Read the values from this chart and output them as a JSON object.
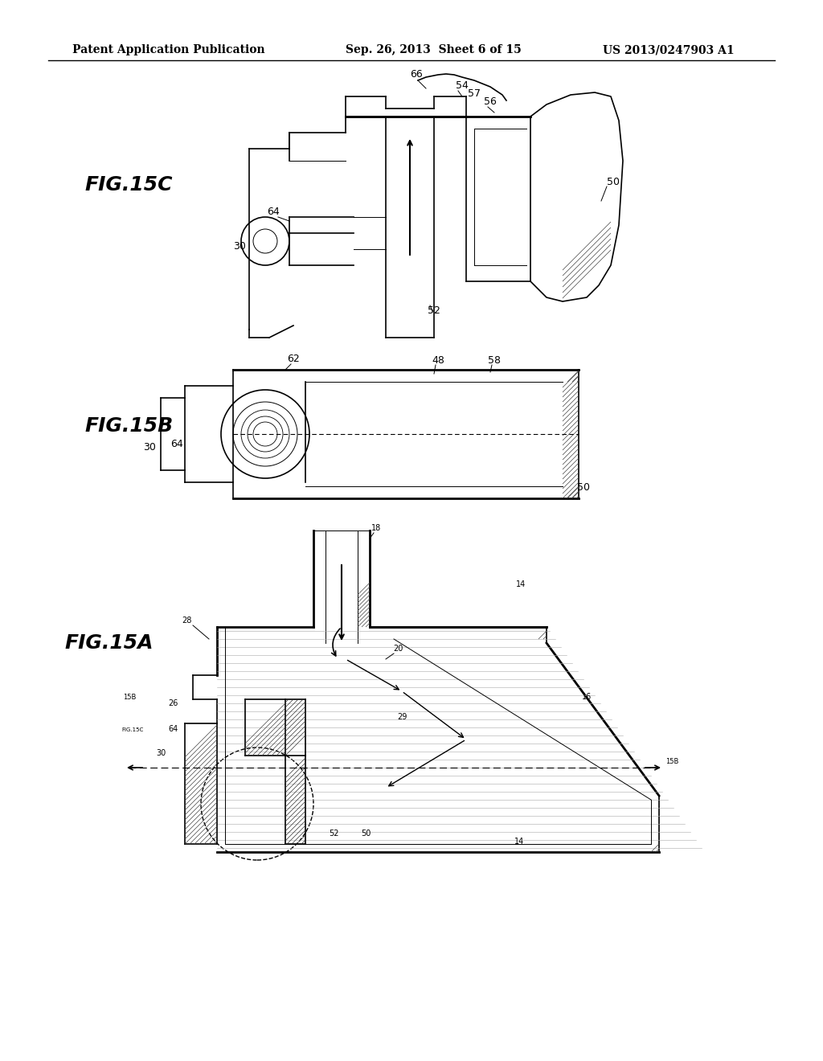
{
  "title_left": "Patent Application Publication",
  "title_mid": "Sep. 26, 2013  Sheet 6 of 15",
  "title_right": "US 2013/0247903 A1",
  "bg_color": "#ffffff",
  "line_color": "#000000",
  "fig_labels": [
    "FIG.15C",
    "FIG.15B",
    "FIG.15A"
  ],
  "header_fontsize": 10,
  "label_fontsize": 16
}
